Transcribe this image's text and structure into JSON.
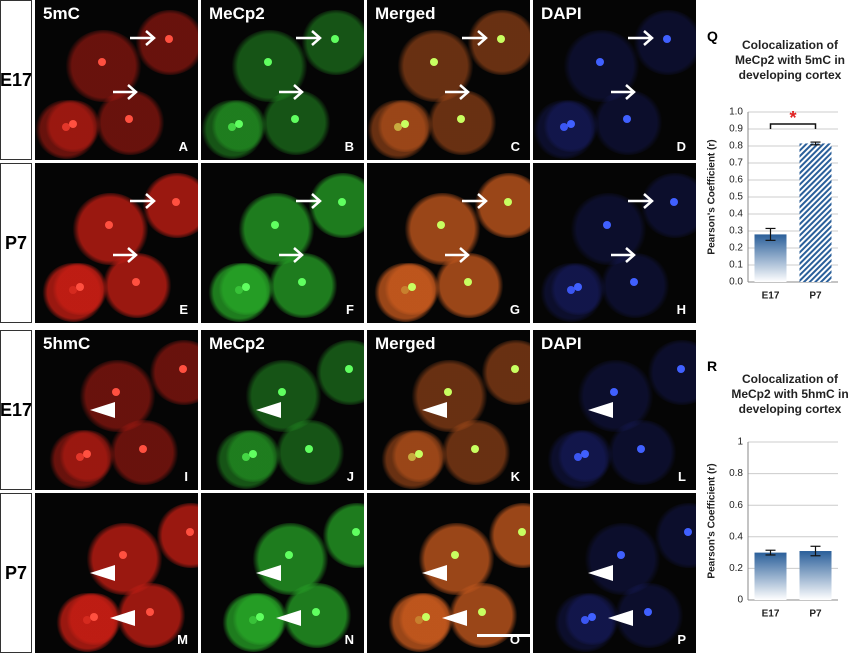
{
  "rows": [
    "E17",
    "P7",
    "E17",
    "P7"
  ],
  "column_headers": [
    [
      "5mC",
      "MeCp2",
      "Merged",
      "DAPI"
    ],
    [
      "5hmC",
      "MeCp2",
      "Merged",
      "DAPI"
    ]
  ],
  "panel_letters": [
    "A",
    "B",
    "C",
    "D",
    "E",
    "F",
    "G",
    "H",
    "I",
    "J",
    "K",
    "L",
    "M",
    "N",
    "O",
    "P"
  ],
  "chart_data": [
    {
      "type": "bar",
      "label": "Q",
      "title": "Colocalization of MeCp2 with 5mC in developing cortex",
      "ylabel": "Pearson's Coefficient (r)",
      "categories": [
        "E17",
        "P7"
      ],
      "values": [
        0.28,
        0.815
      ],
      "errors": [
        0.035,
        0.008
      ],
      "hatched": [
        false,
        true
      ],
      "color": "#2a5f9a",
      "annotation": "*",
      "ylim": [
        0,
        1
      ],
      "yticks": [
        {
          "value": 0,
          "label": "0.0"
        },
        0.1,
        0.2,
        0.3,
        0.4,
        0.5,
        0.6,
        0.7,
        0.8,
        0.9,
        {
          "value": 1,
          "label": "1.0"
        }
      ],
      "grid": true
    },
    {
      "type": "bar",
      "label": "R",
      "title": "Colocalization of MeCp2 with 5hmC in developing cortex",
      "ylabel": "Pearson's Coefficient (r)",
      "categories": [
        "E17",
        "P7"
      ],
      "values": [
        0.3,
        0.31
      ],
      "errors": [
        0.015,
        0.03
      ],
      "hatched": [
        false,
        false
      ],
      "color": "#2a5f9a",
      "ylim": [
        0,
        1
      ],
      "yticks": [
        0,
        0.2,
        0.4,
        0.6,
        0.8,
        1
      ],
      "grid": true
    }
  ]
}
